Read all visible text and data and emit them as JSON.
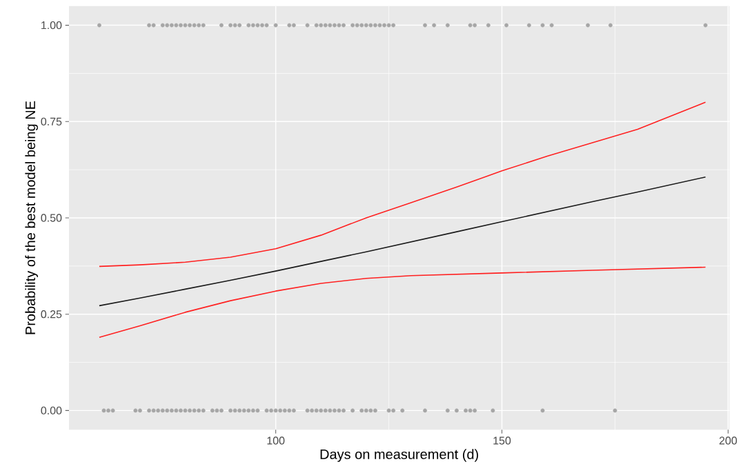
{
  "chart_data": {
    "type": "scatter",
    "xlabel": "Days on measurement (d)",
    "ylabel": "Probability of the best model being NE",
    "xlim": [
      54.3,
      200.3
    ],
    "ylim": [
      -0.05,
      1.05
    ],
    "xticks": [
      100,
      150,
      200
    ],
    "yticks": [
      {
        "value": 0,
        "label": "0.00"
      },
      {
        "value": 0.25,
        "label": "0.25"
      },
      {
        "value": 0.5,
        "label": "0.50"
      },
      {
        "value": 0.75,
        "label": "0.75"
      },
      {
        "value": 1,
        "label": "1.00"
      }
    ],
    "grid": true,
    "series": [
      {
        "marker": "circle",
        "color": "#a6a6a6",
        "x": [
          61,
          72,
          73,
          75,
          76,
          77,
          78,
          79,
          80,
          81,
          82,
          83,
          84,
          88,
          90,
          91,
          92,
          94,
          95,
          96,
          97,
          98,
          100,
          103,
          104,
          107,
          109,
          110,
          111,
          112,
          113,
          114,
          115,
          117,
          118,
          119,
          120,
          121,
          122,
          123,
          124,
          125,
          126,
          133,
          135,
          138,
          143,
          144,
          147,
          151,
          156,
          159,
          161,
          169,
          174,
          195
        ],
        "values": [
          1,
          1,
          1,
          1,
          1,
          1,
          1,
          1,
          1,
          1,
          1,
          1,
          1,
          1,
          1,
          1,
          1,
          1,
          1,
          1,
          1,
          1,
          1,
          1,
          1,
          1,
          1,
          1,
          1,
          1,
          1,
          1,
          1,
          1,
          1,
          1,
          1,
          1,
          1,
          1,
          1,
          1,
          1,
          1,
          1,
          1,
          1,
          1,
          1,
          1,
          1,
          1,
          1,
          1,
          1,
          1
        ]
      },
      {
        "marker": "circle",
        "color": "#a6a6a6",
        "x": [
          62,
          63,
          64,
          69,
          70,
          72,
          73,
          74,
          75,
          76,
          77,
          78,
          79,
          80,
          81,
          82,
          83,
          84,
          86,
          87,
          88,
          90,
          91,
          92,
          93,
          94,
          95,
          96,
          98,
          99,
          100,
          101,
          102,
          103,
          104,
          107,
          108,
          109,
          110,
          111,
          112,
          113,
          114,
          115,
          117,
          119,
          120,
          121,
          122,
          125,
          126,
          128,
          133,
          138,
          140,
          142,
          143,
          144,
          148,
          159,
          175
        ],
        "values": [
          0,
          0,
          0,
          0,
          0,
          0,
          0,
          0,
          0,
          0,
          0,
          0,
          0,
          0,
          0,
          0,
          0,
          0,
          0,
          0,
          0,
          0,
          0,
          0,
          0,
          0,
          0,
          0,
          0,
          0,
          0,
          0,
          0,
          0,
          0,
          0,
          0,
          0,
          0,
          0,
          0,
          0,
          0,
          0,
          0,
          0,
          0,
          0,
          0,
          0,
          0,
          0,
          0,
          0,
          0,
          0,
          0,
          0,
          0,
          0,
          0
        ]
      },
      {
        "type": "line",
        "marker": "none",
        "color": "#ff2020",
        "x": [
          61,
          70,
          80,
          90,
          100,
          110,
          120,
          130,
          140,
          150,
          160,
          170,
          180,
          195
        ],
        "values": [
          0.374,
          0.378,
          0.385,
          0.398,
          0.42,
          0.455,
          0.5,
          0.54,
          0.58,
          0.622,
          0.66,
          0.695,
          0.73,
          0.8
        ]
      },
      {
        "type": "line",
        "marker": "none",
        "color": "#ff2020",
        "x": [
          61,
          70,
          80,
          90,
          100,
          110,
          120,
          130,
          150,
          170,
          195
        ],
        "values": [
          0.19,
          0.22,
          0.255,
          0.285,
          0.31,
          0.33,
          0.343,
          0.35,
          0.357,
          0.364,
          0.372
        ]
      },
      {
        "type": "line",
        "marker": "none",
        "color": "#1a1a1a",
        "x": [
          61,
          70,
          80,
          90,
          100,
          110,
          120,
          130,
          140,
          150,
          160,
          170,
          180,
          195
        ],
        "values": [
          0.272,
          0.292,
          0.315,
          0.338,
          0.362,
          0.387,
          0.412,
          0.438,
          0.464,
          0.49,
          0.516,
          0.542,
          0.567,
          0.606
        ]
      }
    ]
  }
}
